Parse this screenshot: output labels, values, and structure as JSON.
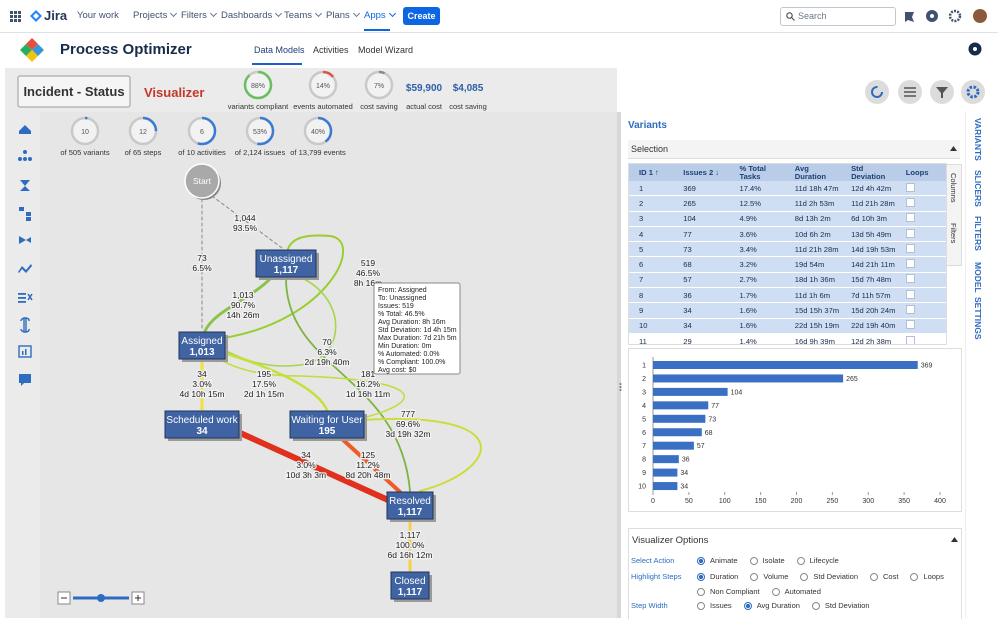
{
  "topnav": {
    "product": "Jira",
    "menu": [
      "Your work",
      "Projects",
      "Filters",
      "Dashboards",
      "Teams",
      "Plans",
      "Apps"
    ],
    "create": "Create",
    "search": "Search"
  },
  "app": {
    "title": "Process Optimizer",
    "tabs": [
      "Data Models",
      "Activities",
      "Model Wizard"
    ]
  },
  "header": {
    "dataset": "Incident - Status",
    "mode": "Visualizer",
    "gauges": [
      {
        "value": 88,
        "label": "88%",
        "caption": "variants compliant"
      },
      {
        "value": 14,
        "label": "14%",
        "caption": "events automated"
      },
      {
        "value": 7,
        "label": "7%",
        "caption": "cost saving"
      }
    ],
    "costs": [
      {
        "amount": "$59,900",
        "caption": "actual cost"
      },
      {
        "amount": "$4,085",
        "caption": "cost saving"
      }
    ]
  },
  "stats": [
    {
      "value": 10,
      "caption": "of 505 variants"
    },
    {
      "value": 12,
      "caption": "of 65 steps"
    },
    {
      "value": 6,
      "caption": "of 10 activities"
    },
    {
      "value": 53,
      "label": "53%",
      "caption": "of 2,124 issues"
    },
    {
      "value": 40,
      "label": "40%",
      "caption": "of 13,799 events"
    }
  ],
  "graph": {
    "nodes": [
      {
        "label": "Start"
      },
      {
        "label": "Unassigned",
        "count": "1,117"
      },
      {
        "label": "Assigned",
        "count": "1,013"
      },
      {
        "label": "Scheduled work",
        "count": "34"
      },
      {
        "label": "Waiting for User",
        "count": "195"
      },
      {
        "label": "Resolved",
        "count": "1,117"
      },
      {
        "label": "Closed",
        "count": "1,117"
      }
    ],
    "edges": [
      {
        "label": [
          "1,044",
          "93.5%"
        ]
      },
      {
        "label": [
          "73",
          "6.5%"
        ]
      },
      {
        "label": [
          "1,013",
          "90.7%",
          "14h 26m"
        ]
      },
      {
        "label": [
          "519",
          "46.5%",
          "8h 16m"
        ]
      },
      {
        "label": [
          "70",
          "6.3%",
          "2d 19h 40m"
        ]
      },
      {
        "label": [
          "181",
          "16.2%",
          "1d 16h 11m"
        ]
      },
      {
        "label": [
          "34",
          "3.0%",
          "4d 10h 15m"
        ]
      },
      {
        "label": [
          "195",
          "17.5%",
          "2d 1h 15m"
        ]
      },
      {
        "label": [
          "777",
          "69.6%",
          "3d 19h 32m"
        ]
      },
      {
        "label": [
          "34",
          "3.0%",
          "10d 3h 3m"
        ]
      },
      {
        "label": [
          "125",
          "11.2%",
          "8d 20h 48m"
        ]
      },
      {
        "label": [
          "1,117",
          "100.0%",
          "6d 16h 12m"
        ]
      }
    ],
    "tooltip": [
      "From: Assigned",
      "To: Unassigned",
      "Issues: 519",
      "% Total: 46.5%",
      "Avg Duration: 8h 16m",
      "Std Deviation: 1d 4h 15m",
      "Max Duration: 7d 21h 5m",
      "Min Duration: 0m",
      "% Automated: 0.0%",
      "% Compliant: 100.0%",
      "Avg cost: $0"
    ]
  },
  "panel": {
    "title": "Variants",
    "selection": "Selection",
    "side_tabs": [
      "Columns",
      "Filters"
    ],
    "columns": [
      "ID 1 ↑",
      "Issues 2 ↓",
      "% Total Tasks",
      "Avg Duration",
      "Std Deviation",
      "Loops"
    ],
    "rows": [
      [
        "1",
        "369",
        "17.4%",
        "11d 18h 47m",
        "12d 4h 42m"
      ],
      [
        "2",
        "265",
        "12.5%",
        "11d 2h 53m",
        "11d 21h 28m"
      ],
      [
        "3",
        "104",
        "4.9%",
        "8d 13h 2m",
        "6d 10h 3m"
      ],
      [
        "4",
        "77",
        "3.6%",
        "10d 6h 2m",
        "13d 5h 49m"
      ],
      [
        "5",
        "73",
        "3.4%",
        "11d 21h 28m",
        "14d 19h 53m"
      ],
      [
        "6",
        "68",
        "3.2%",
        "19d 54m",
        "14d 21h 11m"
      ],
      [
        "7",
        "57",
        "2.7%",
        "18d 1h 36m",
        "15d 7h 48m"
      ],
      [
        "8",
        "36",
        "1.7%",
        "11d 1h 6m",
        "7d 11h 57m"
      ],
      [
        "9",
        "34",
        "1.6%",
        "15d 15h 37m",
        "15d 20h 24m"
      ],
      [
        "10",
        "34",
        "1.6%",
        "22d 15h 19m",
        "22d 19h 40m"
      ],
      [
        "11",
        "29",
        "1.4%",
        "16d 9h 39m",
        "12d 2h 38m"
      ]
    ]
  },
  "chart_data": {
    "type": "bar",
    "orientation": "horizontal",
    "categories": [
      "1",
      "2",
      "3",
      "4",
      "5",
      "6",
      "7",
      "8",
      "9",
      "10"
    ],
    "values": [
      369,
      265,
      104,
      77,
      73,
      68,
      57,
      36,
      34,
      34
    ],
    "color": "#3a70c4",
    "xlim": [
      0,
      400
    ],
    "xticks": [
      0,
      50,
      100,
      150,
      200,
      250,
      300,
      350,
      400
    ]
  },
  "options": {
    "title": "Visualizer Options",
    "groups": [
      {
        "label": "Select Action",
        "choices": [
          "Animate",
          "Isolate",
          "Lifecycle"
        ],
        "selected": 0
      },
      {
        "label": "Highlight Steps",
        "choices": [
          "Duration",
          "Volume",
          "Std Deviation",
          "Cost",
          "Loops",
          "Non Compliant",
          "Automated"
        ],
        "selected": 0
      },
      {
        "label": "Step Width",
        "choices": [
          "Issues",
          "Avg Duration",
          "Std Deviation"
        ],
        "selected": 1
      }
    ]
  },
  "side_tabs": [
    "VARIANTS",
    "SLICERS",
    "FILTERS",
    "MODEL",
    "SETTINGS"
  ]
}
